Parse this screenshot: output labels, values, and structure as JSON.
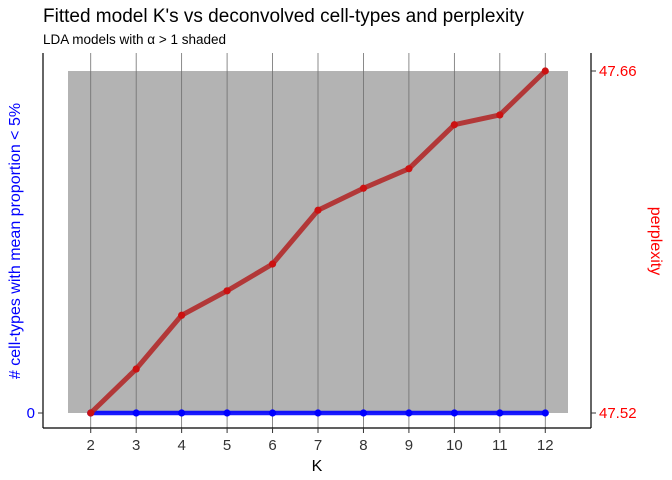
{
  "chart_data": {
    "type": "line",
    "title": "Fitted model K's vs deconvolved cell-types and perplexity",
    "subtitle": "LDA models with α > 1 shaded",
    "xlabel": "K",
    "ylabel_left": "# cell-types with mean proportion < 5%",
    "ylabel_right": "perplexity",
    "x": [
      2,
      3,
      4,
      5,
      6,
      7,
      8,
      9,
      10,
      11,
      12
    ],
    "xlim": [
      1.5,
      12.5
    ],
    "left_axis": {
      "ticks": [
        0
      ],
      "tick_labels": [
        "0"
      ],
      "color": "#0000ff"
    },
    "right_axis": {
      "ylim": [
        47.52,
        47.66
      ],
      "ticks": [
        47.52,
        47.66
      ],
      "tick_labels": [
        "47.52",
        "47.66"
      ],
      "color": "#ff0000"
    },
    "shaded_region": {
      "label": "α > 1",
      "x_range": [
        1.5,
        12.5
      ],
      "color": "#b3b3b3"
    },
    "series": [
      {
        "axis": "left",
        "color": "#0000ff",
        "values": [
          0,
          0,
          0,
          0,
          0,
          0,
          0,
          0,
          0,
          0,
          0
        ]
      },
      {
        "axis": "right",
        "color": "#b22222",
        "values": [
          47.52,
          47.538,
          47.56,
          47.57,
          47.581,
          47.603,
          47.612,
          47.62,
          47.638,
          47.642,
          47.66
        ]
      }
    ],
    "grid": "vertical"
  }
}
